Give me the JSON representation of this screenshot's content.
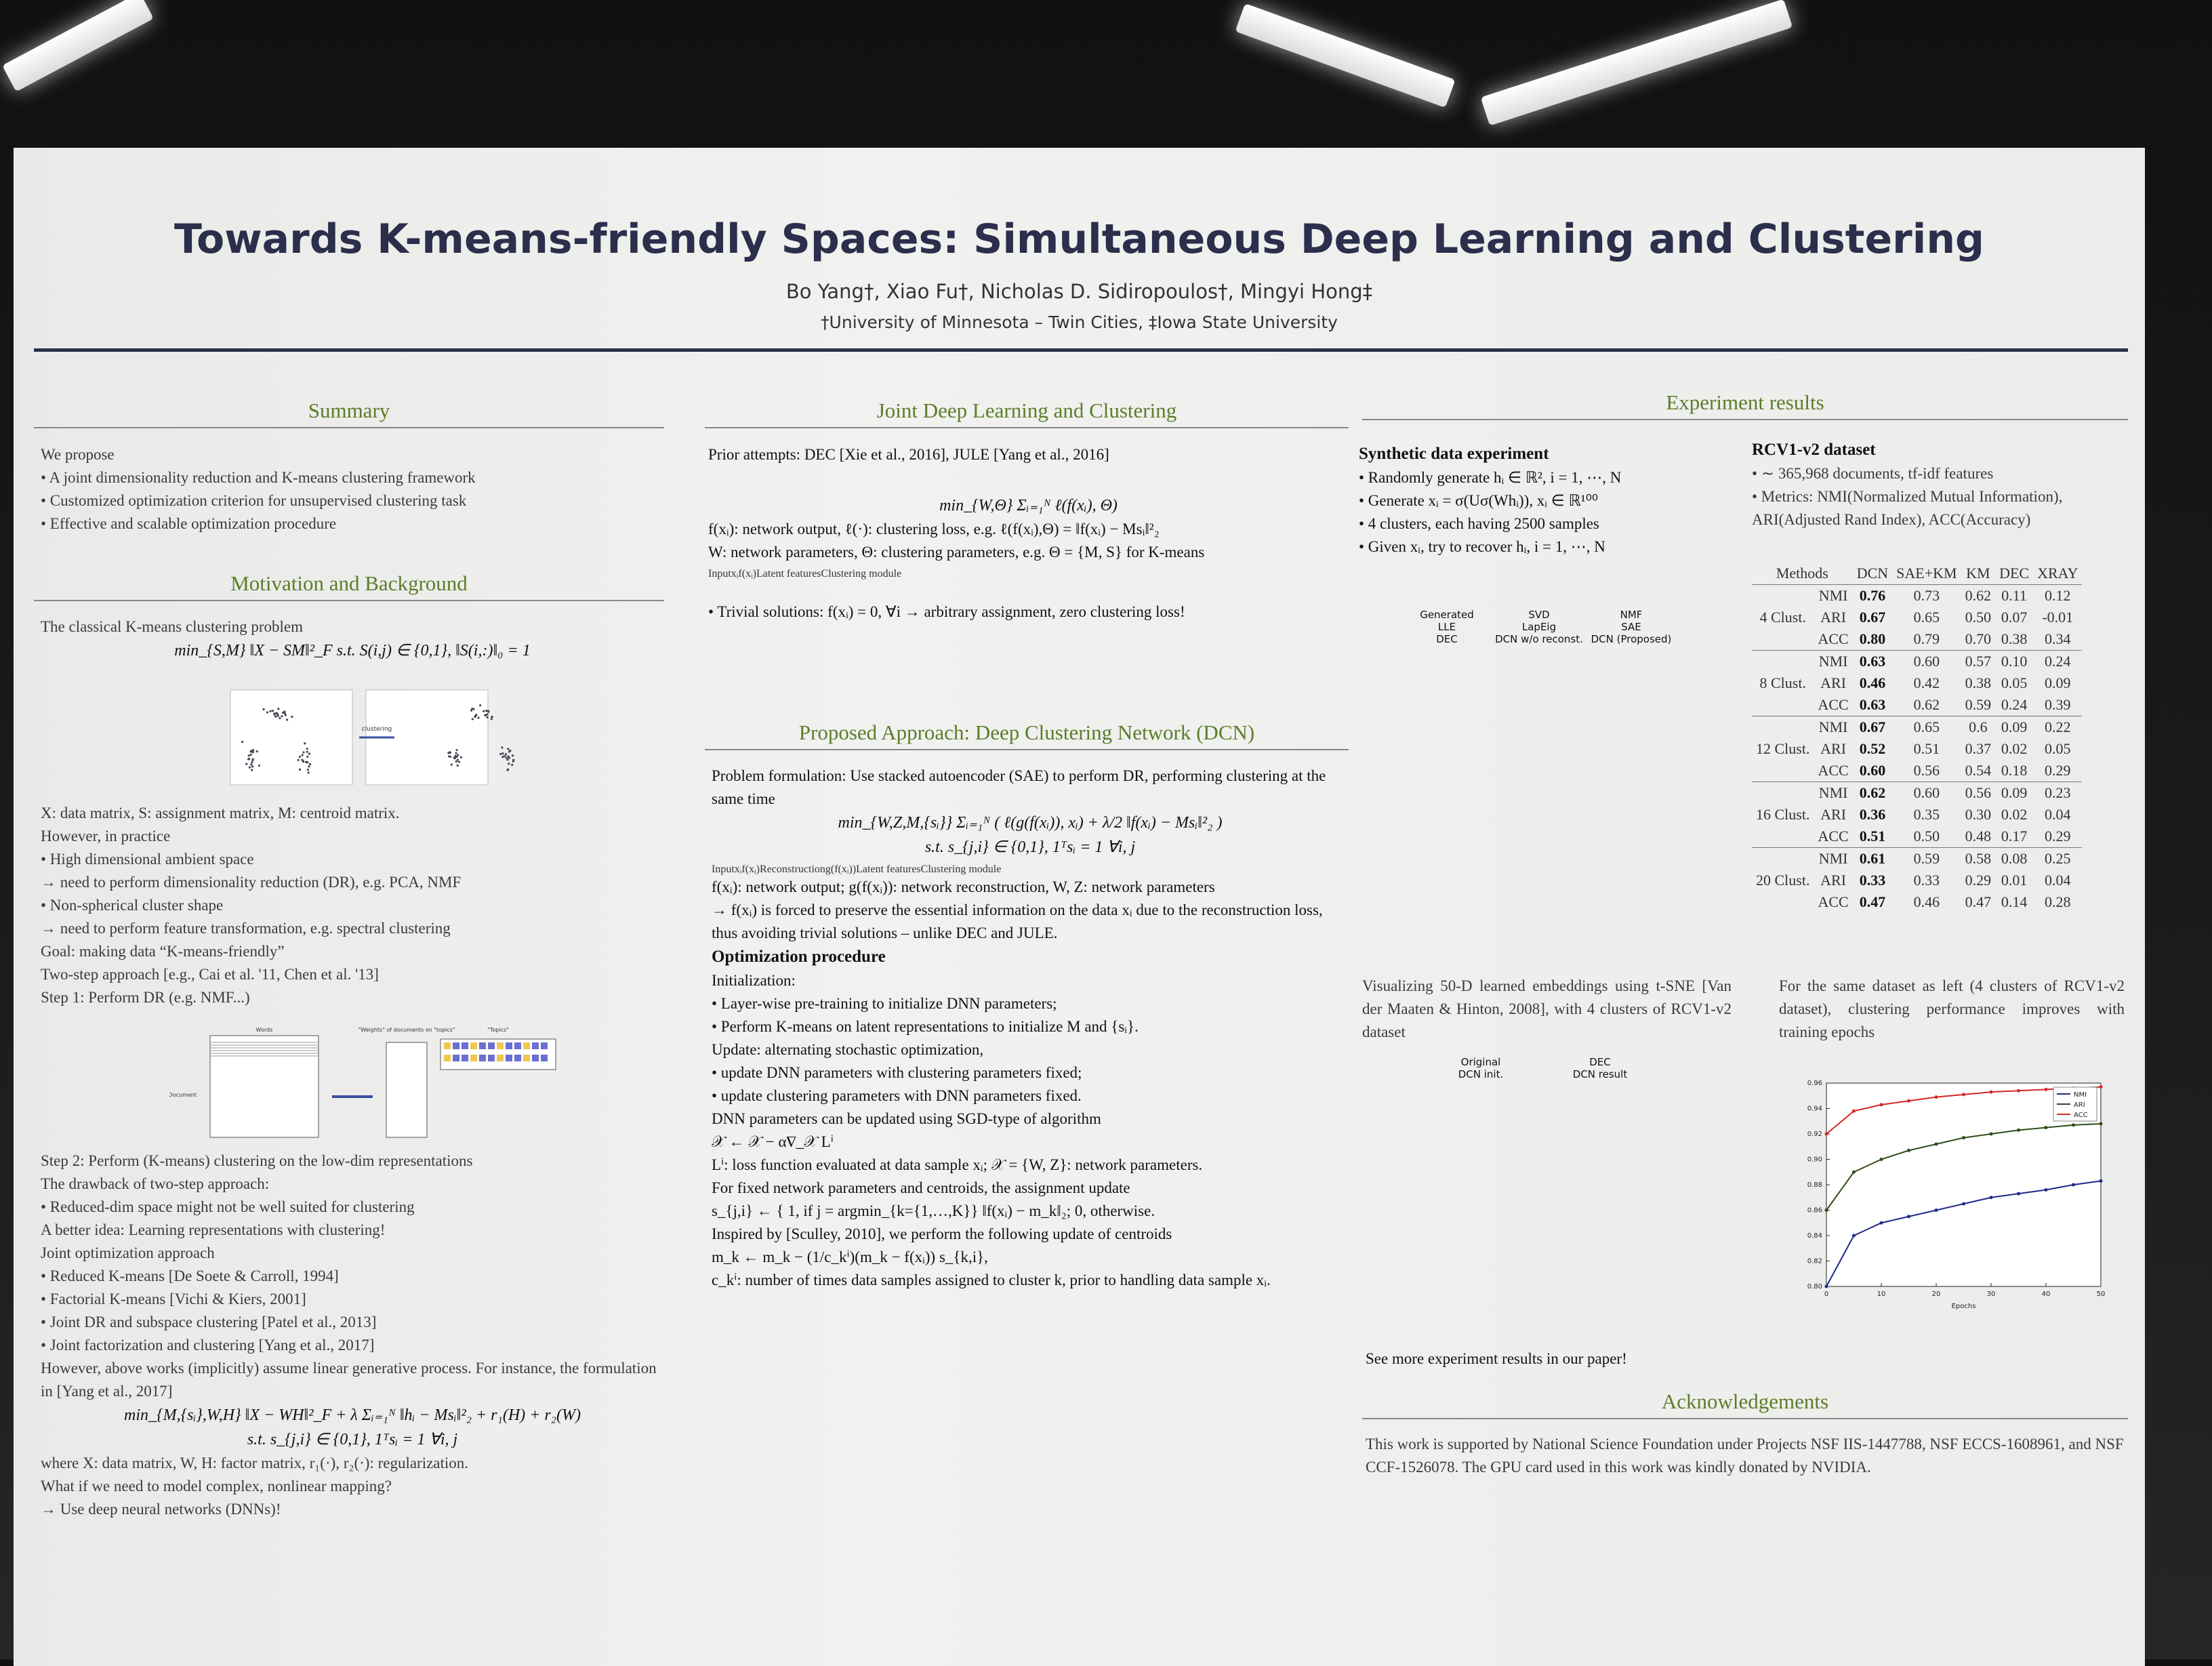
{
  "header": {
    "title": "Towards K-means-friendly Spaces: Simultaneous Deep Learning and Clustering",
    "authors": "Bo Yang†, Xiao Fu†, Nicholas D. Sidiropoulos†, Mingyi Hong‡",
    "affiliation": "†University of Minnesota – Twin Cities, ‡Iowa State University"
  },
  "summary": {
    "heading": "Summary",
    "lines": [
      "We propose",
      "• A joint dimensionality reduction and K-means clustering framework",
      "• Customized optimization criterion for unsupervised clustering task",
      "• Effective and scalable optimization procedure"
    ]
  },
  "motivation": {
    "heading": "Motivation and Background",
    "part1": [
      "The classical K-means clustering problem",
      "min_{S,M} ‖X − SM‖²_F   s.t.  S(i,j) ∈ {0,1},  ‖S(i,:)‖₀ = 1"
    ],
    "fig1_label": "clustering",
    "part2": [
      "X: data matrix, S: assignment matrix, M: centroid matrix.",
      "However, in practice",
      "• High dimensional ambient space",
      "   → need to perform dimensionality reduction (DR), e.g. PCA, NMF",
      "• Non-spherical cluster shape",
      "   → need to perform feature transformation, e.g. spectral clustering",
      "Goal: making data “K-means-friendly”",
      "Two-step approach [e.g., Cai et al. '11, Chen et al. '13]",
      "Step 1: Perform DR (e.g. NMF...)"
    ],
    "fig2_labels": [
      "Words",
      "Document",
      "\"Weights\" of documents on \"topics\"",
      "\"Topics\""
    ],
    "part3": [
      "Step 2: Perform (K-means) clustering on the low-dim representations",
      "The drawback of two-step approach:",
      "• Reduced-dim space might not be well suited for clustering",
      "A better idea: Learning representations with clustering!",
      "Joint optimization approach",
      "• Reduced K-means [De Soete & Carroll, 1994]",
      "• Factorial K-means [Vichi & Kiers, 2001]",
      "• Joint DR and subspace clustering [Patel et al., 2013]",
      "• Joint factorization and clustering [Yang et al., 2017]",
      "However, above works (implicitly) assume linear generative process. For instance, the formulation in [Yang et al., 2017]",
      "min_{M,{sᵢ},W,H} ‖X − WH‖²_F + λ Σᵢ₌₁ᴺ ‖hᵢ − Msᵢ‖²₂ + r₁(H) + r₂(W)",
      "s.t.  s_{j,i} ∈ {0,1}, 1ᵀsᵢ = 1 ∀i, j",
      "where X: data matrix, W, H: factor matrix, r₁(·), r₂(·): regularization.",
      "What if we need to model complex, nonlinear mapping?",
      "→ Use deep neural networks (DNNs)!"
    ]
  },
  "joint": {
    "heading": "Joint Deep Learning and Clustering",
    "prior": "Prior attempts: DEC [Xie et al., 2016], JULE [Yang et al., 2016]",
    "equation": "min_{W,Θ} Σᵢ₌₁ᴺ ℓ(f(xᵢ), Θ)",
    "lines": [
      "f(xᵢ): network output, ℓ(·): clustering loss, e.g. ℓ(f(xᵢ),Θ) = ‖f(xᵢ) − Msᵢ‖²₂",
      "W: network parameters, Θ: clustering parameters, e.g. Θ = {M, S} for K-means"
    ],
    "fig_labels": [
      "Input",
      "xᵢ",
      "f(xᵢ)",
      "Latent features",
      "Clustering module"
    ],
    "trivial": "• Trivial solutions: f(xᵢ) = 0, ∀i → arbitrary assignment, zero clustering loss!"
  },
  "proposed": {
    "heading": "Proposed Approach: Deep Clustering Network (DCN)",
    "formulation": "Problem formulation: Use stacked autoencoder (SAE) to perform DR, performing clustering at the same time",
    "equation": [
      "min_{W,Z,M,{sᵢ}} Σᵢ₌₁ᴺ ( ℓ(g(f(xᵢ)), xᵢ) + λ/2 ‖f(xᵢ) − Msᵢ‖²₂ )",
      "s.t.  s_{j,i} ∈ {0,1},  1ᵀsᵢ = 1  ∀i, j"
    ],
    "fig_labels": [
      "Input",
      "xᵢ",
      "f(xᵢ)",
      "Reconstruction",
      "g(f(xᵢ))",
      "Latent features",
      "Clustering module"
    ],
    "lines": [
      "f(xᵢ): network output; g(f(xᵢ)): network reconstruction, W, Z: network parameters",
      "→ f(xᵢ) is forced to preserve the essential information on the data xᵢ due to the reconstruction loss, thus avoiding trivial solutions – unlike DEC and JULE.",
      "Optimization procedure",
      "Initialization:",
      "• Layer-wise pre-training to initialize DNN parameters;",
      "• Perform K-means on latent representations to initialize M and {sᵢ}.",
      "Update: alternating stochastic optimization,",
      "• update DNN parameters with clustering parameters fixed;",
      "• update clustering parameters with DNN parameters fixed.",
      "DNN parameters can be updated using SGD-type of algorithm",
      "𝒳 ← 𝒳 − α∇_𝒳 Lⁱ",
      "Lⁱ: loss function evaluated at data sample xᵢ; 𝒳 = {W, Z}: network parameters.",
      "For fixed network parameters and centroids, the assignment update",
      "s_{j,i} ← { 1, if j = argmin_{k={1,…,K}} ‖f(xᵢ) − m_k‖₂;  0, otherwise.",
      "Inspired by [Sculley, 2010], we perform the following update of centroids",
      "m_k ← m_k − (1/c_kⁱ)(m_k − f(xᵢ)) s_{k,i},",
      "c_kⁱ: number of times data samples assigned to cluster k, prior to handling data sample xᵢ."
    ]
  },
  "experiments": {
    "heading": "Experiment results",
    "synthetic": {
      "title": "Synthetic data experiment",
      "items": [
        "• Randomly generate hᵢ ∈ ℝ², i = 1, ⋯, N",
        "• Generate xᵢ = σ(Uσ(Whᵢ)), xᵢ ∈ ℝ¹⁰⁰",
        "• 4 clusters, each having 2500 samples",
        "• Given xᵢ, try to recover hᵢ, i = 1, ⋯, N"
      ],
      "panels": [
        "Generated",
        "SVD",
        "NMF",
        "LLE",
        "LapEig",
        "SAE",
        "DEC",
        "DCN w/o reconst.",
        "DCN (Proposed)"
      ]
    },
    "rcv1": {
      "title": "RCV1-v2 dataset",
      "items": [
        "• ∼ 365,968 documents, tf-idf features",
        "• Metrics: NMI(Normalized Mutual Information), ARI(Adjusted Rand Index), ACC(Accuracy)"
      ]
    },
    "table": {
      "columns": [
        "Methods",
        "DCN",
        "SAE+KM",
        "KM",
        "DEC",
        "XRAY"
      ],
      "groups": [
        {
          "label": "4 Clust.",
          "rows": [
            {
              "metric": "NMI",
              "values": [
                "0.76",
                "0.73",
                "0.62",
                "0.11",
                "0.12"
              ]
            },
            {
              "metric": "ARI",
              "values": [
                "0.67",
                "0.65",
                "0.50",
                "0.07",
                "-0.01"
              ]
            },
            {
              "metric": "ACC",
              "values": [
                "0.80",
                "0.79",
                "0.70",
                "0.38",
                "0.34"
              ]
            }
          ]
        },
        {
          "label": "8 Clust.",
          "rows": [
            {
              "metric": "NMI",
              "values": [
                "0.63",
                "0.60",
                "0.57",
                "0.10",
                "0.24"
              ]
            },
            {
              "metric": "ARI",
              "values": [
                "0.46",
                "0.42",
                "0.38",
                "0.05",
                "0.09"
              ]
            },
            {
              "metric": "ACC",
              "values": [
                "0.63",
                "0.62",
                "0.59",
                "0.24",
                "0.39"
              ]
            }
          ]
        },
        {
          "label": "12 Clust.",
          "rows": [
            {
              "metric": "NMI",
              "values": [
                "0.67",
                "0.65",
                "0.6",
                "0.09",
                "0.22"
              ]
            },
            {
              "metric": "ARI",
              "values": [
                "0.52",
                "0.51",
                "0.37",
                "0.02",
                "0.05"
              ]
            },
            {
              "metric": "ACC",
              "values": [
                "0.60",
                "0.56",
                "0.54",
                "0.18",
                "0.29"
              ]
            }
          ]
        },
        {
          "label": "16 Clust.",
          "rows": [
            {
              "metric": "NMI",
              "values": [
                "0.62",
                "0.60",
                "0.56",
                "0.09",
                "0.23"
              ]
            },
            {
              "metric": "ARI",
              "values": [
                "0.36",
                "0.35",
                "0.30",
                "0.02",
                "0.04"
              ]
            },
            {
              "metric": "ACC",
              "values": [
                "0.51",
                "0.50",
                "0.48",
                "0.17",
                "0.29"
              ]
            }
          ]
        },
        {
          "label": "20 Clust.",
          "rows": [
            {
              "metric": "NMI",
              "values": [
                "0.61",
                "0.59",
                "0.58",
                "0.08",
                "0.25"
              ]
            },
            {
              "metric": "ARI",
              "values": [
                "0.33",
                "0.33",
                "0.29",
                "0.01",
                "0.04"
              ]
            },
            {
              "metric": "ACC",
              "values": [
                "0.47",
                "0.46",
                "0.47",
                "0.14",
                "0.28"
              ]
            }
          ]
        }
      ]
    },
    "tsne_caption": "Visualizing 50-D learned embeddings using t-SNE [Van der Maaten & Hinton, 2008], with 4 clusters of RCV1-v2 dataset",
    "tsne_panels": [
      "Original",
      "DEC",
      "DCN init.",
      "DCN result"
    ],
    "epochs_caption": "For the same dataset as left (4 clusters of RCV1-v2 dataset), clustering performance improves with training epochs",
    "epochs_chart": {
      "type": "line",
      "xlabel": "Epochs",
      "x": [
        0,
        5,
        10,
        15,
        20,
        25,
        30,
        35,
        40,
        45,
        50
      ],
      "xlim": [
        0,
        50
      ],
      "xticks": [
        0,
        10,
        20,
        30,
        40,
        50
      ],
      "ylim": [
        0.8,
        0.96
      ],
      "yticks": [
        {
          "value": 0.8,
          "label": "0.80"
        },
        0.82,
        0.84,
        0.86,
        0.88,
        {
          "value": 0.9,
          "label": "0.90"
        },
        0.92,
        0.94,
        0.96
      ],
      "legend": "upper right",
      "series": [
        {
          "name": "NMI",
          "color": "#1f2a8a",
          "values": [
            0.8,
            0.84,
            0.85,
            0.855,
            0.86,
            0.865,
            0.87,
            0.873,
            0.876,
            0.88,
            0.883
          ]
        },
        {
          "name": "ARI",
          "color": "#2e4d1c",
          "values": [
            0.86,
            0.89,
            0.9,
            0.907,
            0.912,
            0.917,
            0.92,
            0.923,
            0.925,
            0.927,
            0.928
          ]
        },
        {
          "name": "ACC",
          "color": "#d62728",
          "values": [
            0.92,
            0.938,
            0.943,
            0.946,
            0.949,
            0.951,
            0.953,
            0.954,
            0.955,
            0.956,
            0.957
          ]
        }
      ]
    },
    "more": "See more experiment results in our paper!"
  },
  "acknowledgements": {
    "heading": "Acknowledgements",
    "text": "This work is supported by National Science Foundation under Projects NSF IIS-1447788, NSF ECCS-1608961, and NSF CCF-1526078. The GPU card used in this work was kindly donated by NVIDIA."
  }
}
